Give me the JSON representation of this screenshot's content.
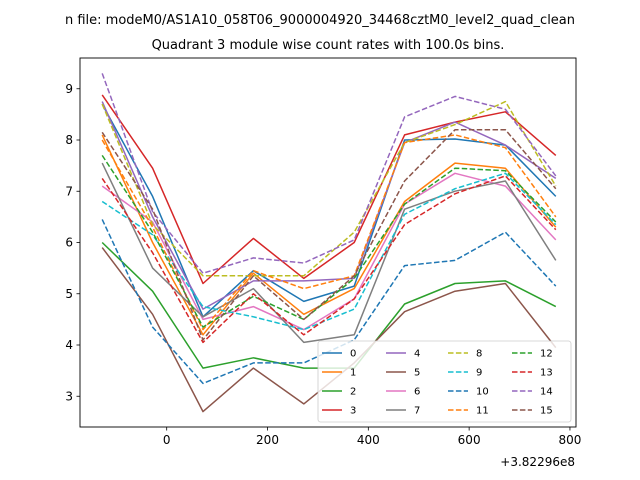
{
  "chart_data": {
    "type": "line",
    "suptitle": "n file: modeM0/AS1A10_058T06_9000004920_34468cztM0_level2_quad_clean",
    "title": "Quadrant 3 module wise count rates with 100.0s bins.",
    "xlabel": "",
    "ylabel": "",
    "x_offset_label": "+3.82296e8",
    "xlim": [
      -172,
      812
    ],
    "ylim": [
      2.4,
      9.6
    ],
    "xticks": [
      0,
      200,
      400,
      600,
      800
    ],
    "yticks": [
      3,
      4,
      5,
      6,
      7,
      8,
      9
    ],
    "legend_loc": "lower right",
    "legend_ncol": 4,
    "x": [
      -128,
      -28,
      72,
      172,
      272,
      372,
      472,
      572,
      672,
      772
    ],
    "series": [
      {
        "name": "0",
        "color": "#1f77b4",
        "dash": false,
        "values": [
          8.7,
          6.9,
          4.55,
          5.45,
          4.85,
          5.15,
          8.0,
          8.02,
          7.9,
          6.9
        ]
      },
      {
        "name": "1",
        "color": "#ff7f0e",
        "dash": false,
        "values": [
          8.1,
          6.0,
          4.2,
          5.4,
          4.6,
          5.1,
          6.8,
          7.55,
          7.45,
          6.3
        ]
      },
      {
        "name": "2",
        "color": "#2ca02c",
        "dash": false,
        "values": [
          6.0,
          5.05,
          3.55,
          3.75,
          3.55,
          3.55,
          4.8,
          5.2,
          5.25,
          4.75
        ]
      },
      {
        "name": "3",
        "color": "#d62728",
        "dash": false,
        "values": [
          8.88,
          7.45,
          5.2,
          6.08,
          5.3,
          6.0,
          8.1,
          8.35,
          8.55,
          7.7
        ]
      },
      {
        "name": "4",
        "color": "#9467bd",
        "dash": false,
        "values": [
          8.75,
          6.5,
          4.7,
          5.25,
          5.25,
          5.3,
          7.95,
          8.35,
          7.9,
          7.25
        ]
      },
      {
        "name": "5",
        "color": "#8c564b",
        "dash": false,
        "values": [
          5.9,
          4.6,
          2.7,
          3.55,
          2.85,
          3.65,
          4.65,
          5.05,
          5.2,
          3.95
        ]
      },
      {
        "name": "6",
        "color": "#e377c2",
        "dash": false,
        "values": [
          7.1,
          6.4,
          4.5,
          4.75,
          4.3,
          4.9,
          6.75,
          7.35,
          7.1,
          6.05
        ]
      },
      {
        "name": "7",
        "color": "#7f7f7f",
        "dash": false,
        "values": [
          7.55,
          5.5,
          4.55,
          5.1,
          4.05,
          4.2,
          6.65,
          7.0,
          7.2,
          5.65
        ]
      },
      {
        "name": "8",
        "color": "#bcbd22",
        "dash": true,
        "values": [
          8.7,
          6.35,
          5.35,
          5.35,
          5.35,
          6.2,
          7.95,
          8.3,
          8.75,
          7.1
        ]
      },
      {
        "name": "9",
        "color": "#17becf",
        "dash": true,
        "values": [
          6.8,
          6.15,
          4.75,
          4.55,
          4.3,
          4.7,
          6.55,
          7.05,
          7.35,
          6.35
        ]
      },
      {
        "name": "10",
        "color": "#1f77b4",
        "dash": true,
        "values": [
          6.45,
          4.35,
          3.25,
          3.65,
          3.65,
          4.1,
          5.55,
          5.65,
          6.2,
          5.15
        ]
      },
      {
        "name": "11",
        "color": "#ff7f0e",
        "dash": true,
        "values": [
          8.0,
          6.3,
          4.3,
          5.45,
          5.1,
          5.35,
          7.95,
          8.1,
          7.85,
          6.5
        ]
      },
      {
        "name": "12",
        "color": "#2ca02c",
        "dash": true,
        "values": [
          7.7,
          6.2,
          4.35,
          4.95,
          4.5,
          5.3,
          6.75,
          7.45,
          7.4,
          6.4
        ]
      },
      {
        "name": "13",
        "color": "#d62728",
        "dash": true,
        "values": [
          7.25,
          5.8,
          4.05,
          5.0,
          4.2,
          4.9,
          6.35,
          6.95,
          7.3,
          6.25
        ]
      },
      {
        "name": "14",
        "color": "#9467bd",
        "dash": true,
        "values": [
          9.3,
          6.6,
          5.4,
          5.7,
          5.6,
          6.05,
          8.45,
          8.85,
          8.6,
          7.3
        ]
      },
      {
        "name": "15",
        "color": "#8c564b",
        "dash": true,
        "values": [
          8.15,
          6.65,
          4.1,
          5.35,
          4.5,
          5.35,
          7.2,
          8.2,
          8.2,
          7.05
        ]
      }
    ]
  }
}
